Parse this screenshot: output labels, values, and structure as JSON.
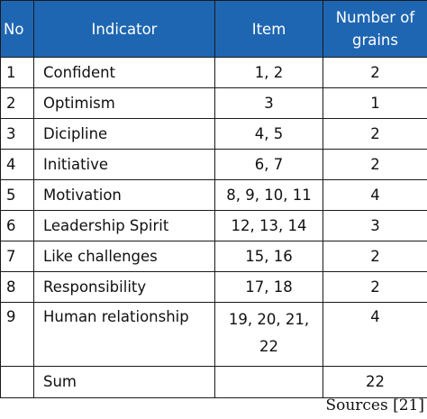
{
  "table": {
    "headers": {
      "no": "No",
      "indicator": "Indicator",
      "item": "Item",
      "grains_line1": "Number of",
      "grains_line2": "grains"
    },
    "rows": [
      {
        "no": "1",
        "indicator": "Confident",
        "item": "1, 2",
        "grains": "2"
      },
      {
        "no": "2",
        "indicator": "Optimism",
        "item": "3",
        "grains": "1"
      },
      {
        "no": "3",
        "indicator": "Dicipline",
        "item": "4, 5",
        "grains": "2"
      },
      {
        "no": "4",
        "indicator": "Initiative",
        "item": "6, 7",
        "grains": "2"
      },
      {
        "no": "5",
        "indicator": "Motivation",
        "item": "8, 9, 10, 11",
        "grains": "4"
      },
      {
        "no": "6",
        "indicator": "Leadership Spirit",
        "item": "12, 13, 14",
        "grains": "3"
      },
      {
        "no": "7",
        "indicator": "Like challenges",
        "item": "15, 16",
        "grains": "2"
      },
      {
        "no": "8",
        "indicator": "Responsibility",
        "item": "17, 18",
        "grains": "2"
      },
      {
        "no": "9",
        "indicator": "Human relationship",
        "item_line1": "19, 20, 21,",
        "item_line2": "22",
        "grains": "4"
      }
    ],
    "sum": {
      "label": "Sum",
      "value": "22"
    }
  },
  "source": "Sources [21]",
  "colors": {
    "header_bg": "#1f66b2",
    "header_text": "#ffffff",
    "border": "#1a1a1a"
  }
}
